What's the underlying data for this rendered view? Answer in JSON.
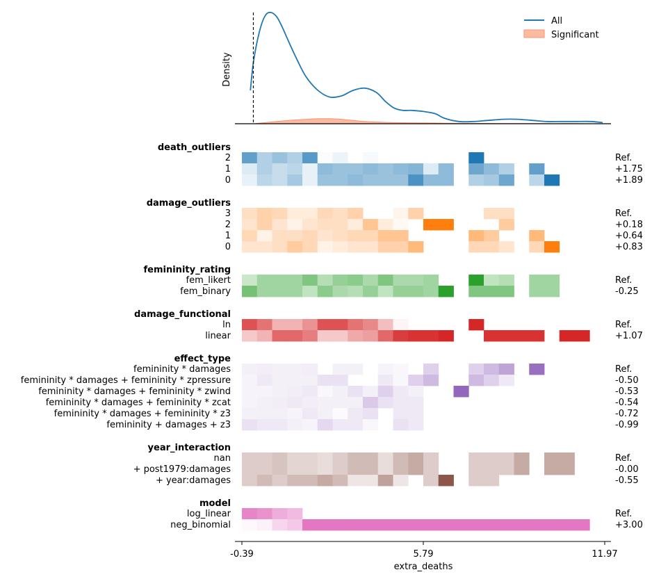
{
  "chart_data": {
    "type": "heatmap",
    "density": {
      "ylabel": "Density",
      "legend": [
        "All",
        "Significant"
      ],
      "legend_position": "top-right",
      "reference_line_x": 0.0,
      "x": [
        -0.1,
        0.0,
        0.2,
        0.4,
        0.6,
        0.8,
        1.0,
        1.2,
        1.5,
        1.8,
        2.2,
        2.6,
        3.0,
        3.4,
        3.8,
        4.2,
        4.5,
        4.8,
        5.1,
        5.4,
        5.8,
        6.2,
        6.5,
        7.0,
        7.5,
        8.0,
        8.5,
        9.0,
        9.5,
        10.0,
        10.5,
        11.0,
        11.5,
        11.9
      ],
      "all": [
        0.3,
        0.55,
        0.82,
        0.97,
        1.0,
        0.96,
        0.86,
        0.74,
        0.57,
        0.42,
        0.3,
        0.24,
        0.25,
        0.3,
        0.32,
        0.28,
        0.2,
        0.14,
        0.12,
        0.12,
        0.11,
        0.09,
        0.05,
        0.02,
        0.02,
        0.03,
        0.04,
        0.04,
        0.03,
        0.02,
        0.02,
        0.02,
        0.02,
        0.01
      ],
      "significant": [
        0.0,
        0.0,
        0.005,
        0.01,
        0.015,
        0.02,
        0.025,
        0.03,
        0.035,
        0.04,
        0.045,
        0.045,
        0.04,
        0.03,
        0.02,
        0.015,
        0.012,
        0.01,
        0.009,
        0.008,
        0.007,
        0.006,
        0.005,
        0.004,
        0.003,
        0.003,
        0.002,
        0.002,
        0.002,
        0.001,
        0.001,
        0.001,
        0.0,
        0.0
      ]
    },
    "heatmap": {
      "xlabel": "extra_deaths",
      "xlim": [
        -0.39,
        11.97
      ],
      "xticks": [
        "-0.39",
        "5.79",
        "11.97"
      ],
      "ncols": 24,
      "groups": [
        {
          "name": "death_outliers",
          "color": "#1f77b4",
          "rows": [
            {
              "label": "2",
              "value": "Ref.",
              "cells": [
                0.7,
                0.35,
                0.45,
                0.35,
                0.75,
                0.02,
                0.08,
                0,
                0.04,
                0,
                0,
                0,
                0,
                0,
                0,
                1,
                0,
                0,
                0,
                0,
                0,
                0,
                0,
                0
              ]
            },
            {
              "label": "1",
              "value": "+1.75",
              "cells": [
                0.15,
                0.35,
                0.25,
                0.3,
                0.1,
                0.5,
                0.45,
                0.45,
                0.5,
                0.45,
                0.5,
                0.55,
                0.15,
                0.5,
                0,
                0.65,
                0.5,
                0.35,
                0,
                0.7,
                0,
                0,
                0,
                0
              ]
            },
            {
              "label": "0",
              "value": "+1.89",
              "cells": [
                0.1,
                0.3,
                0.25,
                0.4,
                0.1,
                0.45,
                0.45,
                0.5,
                0.45,
                0.45,
                0.45,
                0.8,
                0.5,
                0.5,
                0,
                0.35,
                0.4,
                0.65,
                0,
                0.3,
                1,
                0,
                0,
                0
              ]
            }
          ]
        },
        {
          "name": "damage_outliers",
          "color": "#ff7f0e",
          "rows": [
            {
              "label": "3",
              "value": "Ref.",
              "cells": [
                0.25,
                0.35,
                0.3,
                0.15,
                0.15,
                0.3,
                0.25,
                0.35,
                0,
                0,
                0.08,
                0.35,
                0,
                0,
                0,
                0,
                0.25,
                0.25,
                0,
                0,
                0,
                0,
                0,
                0
              ]
            },
            {
              "label": "2",
              "value": "+0.18",
              "cells": [
                0.2,
                0.35,
                0.2,
                0.1,
                0.2,
                0.25,
                0.25,
                0.15,
                0.45,
                0.15,
                0.05,
                0,
                1,
                1,
                0,
                0,
                0,
                0.4,
                0,
                0,
                0,
                0,
                0,
                0
              ]
            },
            {
              "label": "1",
              "value": "+0.64",
              "cells": [
                0.3,
                0.1,
                0.25,
                0.25,
                0.3,
                0.2,
                0.25,
                0.3,
                0.3,
                0.45,
                0.45,
                0,
                0,
                0,
                0,
                0.55,
                0.4,
                0,
                0,
                0.55,
                0,
                0,
                0,
                0
              ]
            },
            {
              "label": "0",
              "value": "+0.83",
              "cells": [
                0.2,
                0.2,
                0.25,
                0.4,
                0.3,
                0.1,
                0.15,
                0.2,
                0.2,
                0.35,
                0.35,
                0.55,
                0,
                0,
                0,
                0.3,
                0.3,
                0.2,
                0,
                0.3,
                1,
                0,
                0,
                0
              ]
            }
          ]
        },
        {
          "name": "femininity_rating",
          "color": "#2ca02c",
          "rows": [
            {
              "label": "fem_likert",
              "value": "Ref.",
              "cells": [
                0.25,
                0.45,
                0.45,
                0.45,
                0.6,
                0.35,
                0.5,
                0.55,
                0.4,
                0.6,
                0.4,
                0.4,
                0.45,
                0,
                0,
                1,
                0.3,
                0.35,
                0,
                0.45,
                0.45,
                0,
                0,
                0
              ]
            },
            {
              "label": "fem_binary",
              "value": "-0.25",
              "cells": [
                0.65,
                0.45,
                0.45,
                0.45,
                0.3,
                0.55,
                0.4,
                0.35,
                0.5,
                0.3,
                0.5,
                0.5,
                0.45,
                1,
                0,
                0.6,
                0.6,
                0.6,
                0,
                0.45,
                0.45,
                0,
                0,
                0
              ]
            }
          ]
        },
        {
          "name": "damage_functional",
          "color": "#d62728",
          "rows": [
            {
              "label": "ln",
              "value": "Ref.",
              "cells": [
                0.8,
                0.65,
                0.35,
                0.35,
                0.5,
                0.8,
                0.8,
                0.65,
                0.55,
                0.3,
                0.05,
                0,
                0,
                0,
                0,
                1,
                0,
                0,
                0,
                0,
                0,
                0,
                0,
                0
              ]
            },
            {
              "label": "linear",
              "value": "+1.07",
              "cells": [
                0.25,
                0.35,
                0.7,
                0.7,
                0.6,
                0.25,
                0.25,
                0.4,
                0.45,
                0.7,
                0.9,
                0.95,
                0.95,
                1,
                0,
                0,
                0.95,
                0.95,
                0.95,
                0.95,
                0,
                1,
                1,
                0
              ]
            }
          ]
        },
        {
          "name": "effect_type",
          "color": "#9467bd",
          "rows": [
            {
              "label": "femininity * damages",
              "value": "Ref.",
              "cells": [
                0.1,
                0.12,
                0.1,
                0.1,
                0.12,
                0,
                0.1,
                0.1,
                0,
                0.08,
                0.05,
                0,
                0.3,
                0,
                0,
                0.3,
                0.45,
                0.6,
                0,
                0.95,
                0,
                0,
                0,
                0
              ]
            },
            {
              "label": "femininity * damages + femininity * zpressure",
              "value": "-0.50",
              "cells": [
                0.08,
                0.15,
                0.1,
                0.1,
                0.1,
                0.2,
                0.2,
                0,
                0,
                0.15,
                0.05,
                0.3,
                0.45,
                0,
                0,
                0.45,
                0.3,
                0.15,
                0,
                0,
                0,
                0,
                0,
                0
              ]
            },
            {
              "label": "femininity * damages + femininity * zwind",
              "value": "-0.53",
              "cells": [
                0.08,
                0.08,
                0.1,
                0.12,
                0.15,
                0.05,
                0.1,
                0.2,
                0.1,
                0.3,
                0.15,
                0.1,
                0,
                0,
                1,
                0,
                0,
                0,
                0,
                0,
                0,
                0,
                0,
                0
              ]
            },
            {
              "label": "femininity * damages + femininity * zcat",
              "value": "-0.54",
              "cells": [
                0.08,
                0.1,
                0.12,
                0.15,
                0.12,
                0.1,
                0.1,
                0.1,
                0.35,
                0.2,
                0.15,
                0.15,
                0,
                0,
                0,
                0,
                0,
                0,
                0,
                0,
                0,
                0,
                0,
                0
              ]
            },
            {
              "label": "femininity * damages + femininity * z3",
              "value": "-0.72",
              "cells": [
                0.1,
                0.1,
                0.1,
                0.08,
                0.15,
                0.1,
                0.03,
                0.15,
                0.2,
                0,
                0.15,
                0.15,
                0,
                0,
                0,
                0,
                0,
                0,
                0,
                0,
                0,
                0,
                0,
                0
              ]
            },
            {
              "label": "femininity + damages + z3",
              "value": "-0.99",
              "cells": [
                0.2,
                0.15,
                0.15,
                0.1,
                0.08,
                0.25,
                0.15,
                0.15,
                0.05,
                0,
                0.2,
                0.15,
                0,
                0,
                0,
                0,
                0,
                0,
                0,
                0,
                0,
                0,
                0,
                0
              ]
            }
          ]
        },
        {
          "name": "year_interaction",
          "color": "#8c564b",
          "rows": [
            {
              "label": "nan",
              "value": "Ref.",
              "cells": [
                0.3,
                0.3,
                0.35,
                0.25,
                0.25,
                0.2,
                0.3,
                0.4,
                0.4,
                0.2,
                0.4,
                0.5,
                0.3,
                0,
                0,
                0.3,
                0.3,
                0.3,
                0.5,
                0,
                0.5,
                0.5,
                0,
                0
              ]
            },
            {
              "label": "+ post1979:damages",
              "value": "-0.00",
              "cells": [
                0.3,
                0.3,
                0.35,
                0.25,
                0.25,
                0.2,
                0.3,
                0.4,
                0.4,
                0.2,
                0.4,
                0.5,
                0.3,
                0,
                0,
                0.3,
                0.3,
                0.3,
                0.5,
                0,
                0.5,
                0.5,
                0,
                0
              ]
            },
            {
              "label": "+ year:damages",
              "value": "-0.55",
              "cells": [
                0.3,
                0.4,
                0.3,
                0.4,
                0.4,
                0.5,
                0.4,
                0.15,
                0.15,
                0.55,
                0.15,
                0,
                0.3,
                1,
                0,
                0.3,
                0.3,
                0,
                0,
                0,
                0,
                0,
                0,
                0
              ]
            }
          ]
        },
        {
          "name": "model",
          "color": "#e377c2",
          "rows": [
            {
              "label": "log_linear",
              "value": "Ref.",
              "cells": [
                0.9,
                0.8,
                0.6,
                0.5,
                0,
                0,
                0,
                0,
                0,
                0,
                0,
                0,
                0,
                0,
                0,
                0,
                0,
                0,
                0,
                0,
                0,
                0,
                0,
                0
              ]
            },
            {
              "label": "neg_binomial",
              "value": "+3.00",
              "cells": [
                0.05,
                0.1,
                0.3,
                0.4,
                1,
                1,
                1,
                1,
                1,
                1,
                1,
                1,
                1,
                1,
                1,
                1,
                1,
                1,
                1,
                1,
                1,
                1,
                1,
                0
              ]
            }
          ]
        }
      ]
    }
  }
}
